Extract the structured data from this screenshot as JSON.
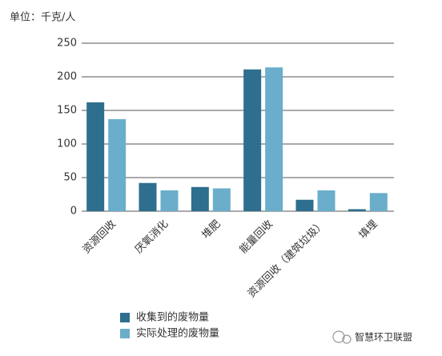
{
  "chart_data": {
    "type": "bar",
    "y_label": "单位：千克/人",
    "categories": [
      "资源回收",
      "厌氧消化",
      "堆肥",
      "能量回收",
      "资源回收（建筑垃圾）",
      "填埋"
    ],
    "series": [
      {
        "name": "收集到的废物量",
        "color": "#2e6e8e",
        "values": [
          162,
          42,
          36,
          211,
          17,
          3
        ]
      },
      {
        "name": "实际处理的废物量",
        "color": "#6aaecb",
        "values": [
          137,
          31,
          34,
          214,
          31,
          27
        ]
      }
    ],
    "ylim": [
      0,
      250
    ],
    "yticks": [
      0,
      50,
      100,
      150,
      200,
      250
    ],
    "grid": true
  },
  "watermark": "智慧环卫联盟"
}
